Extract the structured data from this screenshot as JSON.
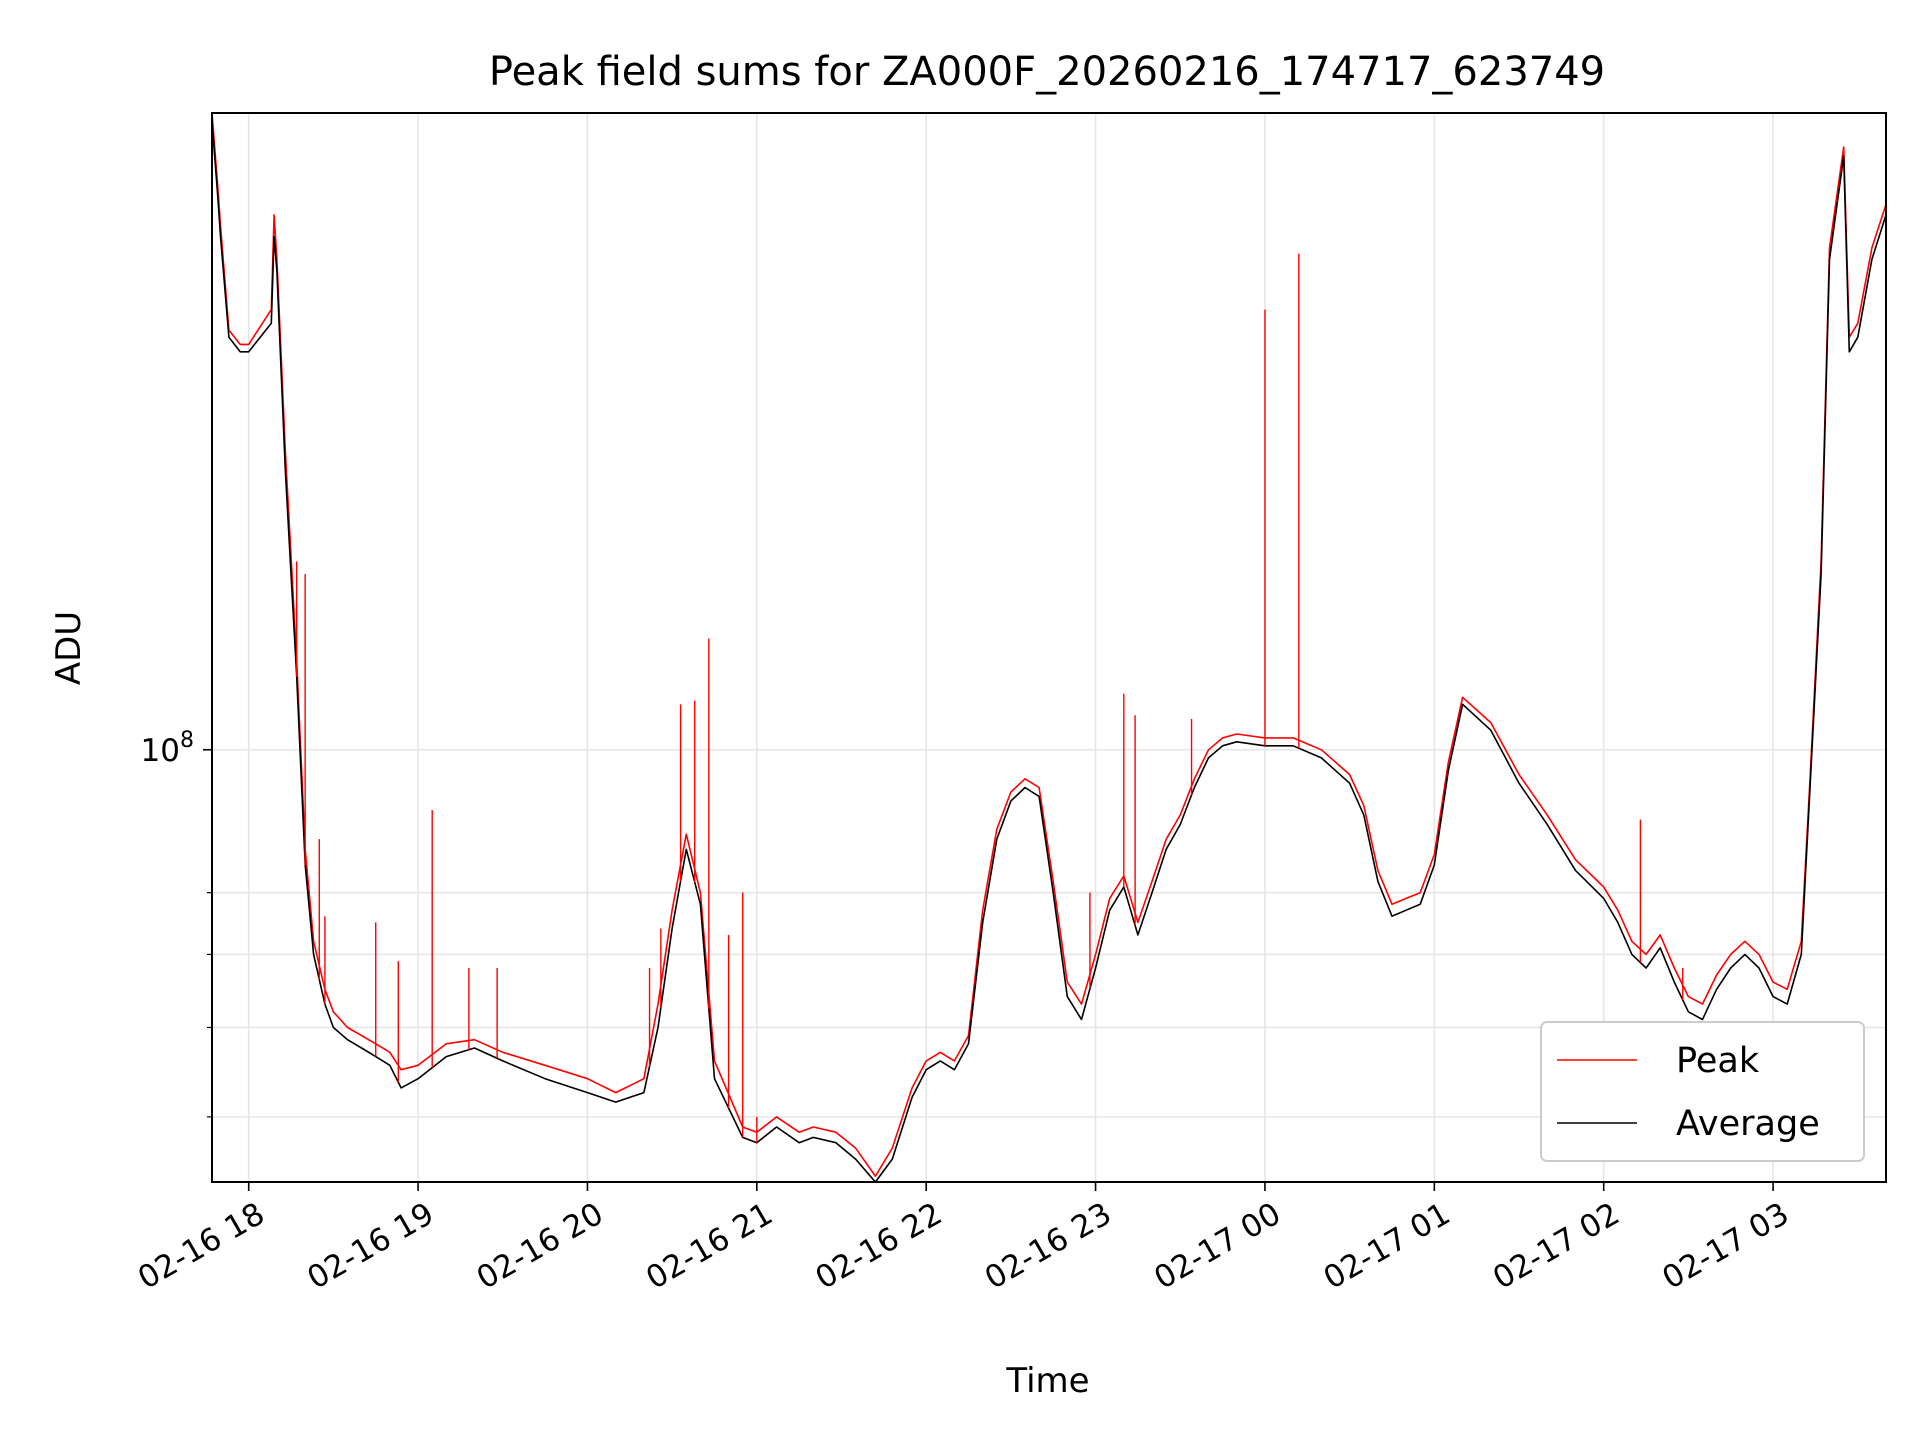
{
  "chart_data": {
    "type": "line",
    "title": "Peak field sums for ZA000F_20260216_174717_623749",
    "xlabel": "Time",
    "ylabel": "ADU",
    "yscale": "log",
    "ylim": [
      34000000,
      490000000
    ],
    "xlim": [
      "2026-02-16 17:47",
      "2026-02-17 03:40"
    ],
    "grid": true,
    "legend_position": "lower-right",
    "x_ticks": [
      "02-16 18",
      "02-16 19",
      "02-16 20",
      "02-16 21",
      "02-16 22",
      "02-16 23",
      "02-17 00",
      "02-17 01",
      "02-17 02",
      "02-17 03"
    ],
    "x_tick_times": [
      "2026-02-16 18:00",
      "2026-02-16 19:00",
      "2026-02-16 20:00",
      "2026-02-16 21:00",
      "2026-02-16 22:00",
      "2026-02-16 23:00",
      "2026-02-17 00:00",
      "2026-02-17 01:00",
      "2026-02-17 02:00",
      "2026-02-17 03:00"
    ],
    "y_major_ticks": [
      {
        "value": 100000000,
        "base": "10",
        "exp": "8"
      }
    ],
    "y_minor_ticks": [
      40000000,
      50000000,
      60000000,
      70000000
    ],
    "series": [
      {
        "name": "Average",
        "color": "#000000",
        "x": [
          "2026-02-16 17:47",
          "2026-02-16 17:49",
          "2026-02-16 17:50",
          "2026-02-16 17:53",
          "2026-02-16 17:57",
          "2026-02-16 18:00",
          "2026-02-16 18:08",
          "2026-02-16 18:09",
          "2026-02-16 18:10",
          "2026-02-16 18:13",
          "2026-02-16 18:17",
          "2026-02-16 18:20",
          "2026-02-16 18:23",
          "2026-02-16 18:27",
          "2026-02-16 18:30",
          "2026-02-16 18:35",
          "2026-02-16 18:40",
          "2026-02-16 18:45",
          "2026-02-16 18:50",
          "2026-02-16 18:54",
          "2026-02-16 19:00",
          "2026-02-16 19:10",
          "2026-02-16 19:20",
          "2026-02-16 19:30",
          "2026-02-16 19:45",
          "2026-02-16 20:00",
          "2026-02-16 20:10",
          "2026-02-16 20:20",
          "2026-02-16 20:25",
          "2026-02-16 20:30",
          "2026-02-16 20:35",
          "2026-02-16 20:40",
          "2026-02-16 20:45",
          "2026-02-16 20:55",
          "2026-02-16 21:00",
          "2026-02-16 21:07",
          "2026-02-16 21:15",
          "2026-02-16 21:20",
          "2026-02-16 21:28",
          "2026-02-16 21:35",
          "2026-02-16 21:42",
          "2026-02-16 21:48",
          "2026-02-16 21:55",
          "2026-02-16 22:00",
          "2026-02-16 22:05",
          "2026-02-16 22:10",
          "2026-02-16 22:15",
          "2026-02-16 22:20",
          "2026-02-16 22:25",
          "2026-02-16 22:30",
          "2026-02-16 22:35",
          "2026-02-16 22:40",
          "2026-02-16 22:45",
          "2026-02-16 22:50",
          "2026-02-16 22:55",
          "2026-02-16 23:00",
          "2026-02-16 23:05",
          "2026-02-16 23:10",
          "2026-02-16 23:15",
          "2026-02-16 23:20",
          "2026-02-16 23:25",
          "2026-02-16 23:30",
          "2026-02-16 23:35",
          "2026-02-16 23:40",
          "2026-02-16 23:45",
          "2026-02-16 23:50",
          "2026-02-17 00:00",
          "2026-02-17 00:10",
          "2026-02-17 00:20",
          "2026-02-17 00:30",
          "2026-02-17 00:35",
          "2026-02-17 00:40",
          "2026-02-17 00:45",
          "2026-02-17 00:50",
          "2026-02-17 00:55",
          "2026-02-17 01:00",
          "2026-02-17 01:05",
          "2026-02-17 01:10",
          "2026-02-17 01:20",
          "2026-02-17 01:30",
          "2026-02-17 01:40",
          "2026-02-17 01:50",
          "2026-02-17 02:00",
          "2026-02-17 02:05",
          "2026-02-17 02:10",
          "2026-02-17 02:15",
          "2026-02-17 02:20",
          "2026-02-17 02:25",
          "2026-02-17 02:30",
          "2026-02-17 02:35",
          "2026-02-17 02:40",
          "2026-02-17 02:45",
          "2026-02-17 02:50",
          "2026-02-17 02:55",
          "2026-02-17 03:00",
          "2026-02-17 03:05",
          "2026-02-17 03:10",
          "2026-02-17 03:13",
          "2026-02-17 03:17",
          "2026-02-17 03:20",
          "2026-02-17 03:25",
          "2026-02-17 03:27",
          "2026-02-17 03:30",
          "2026-02-17 03:35",
          "2026-02-17 03:40"
        ],
        "values": [
          480000000,
          400000000,
          360000000,
          280000000,
          270000000,
          270000000,
          290000000,
          360000000,
          330000000,
          200000000,
          120000000,
          75000000,
          60000000,
          53000000,
          50000000,
          48500000,
          47500000,
          46500000,
          45500000,
          43000000,
          44000000,
          46500000,
          47500000,
          46000000,
          44000000,
          42500000,
          41500000,
          42500000,
          50000000,
          64000000,
          78000000,
          68000000,
          44000000,
          38000000,
          37500000,
          39000000,
          37500000,
          38000000,
          37500000,
          36000000,
          34000000,
          36000000,
          42000000,
          45000000,
          46000000,
          45000000,
          48000000,
          65000000,
          80000000,
          88000000,
          91000000,
          89000000,
          70000000,
          54000000,
          51000000,
          58000000,
          67000000,
          71000000,
          63000000,
          70000000,
          78000000,
          83000000,
          91000000,
          98000000,
          101000000,
          102000000,
          101000000,
          101000000,
          98000000,
          92000000,
          85000000,
          72000000,
          66000000,
          67000000,
          68000000,
          75000000,
          95000000,
          112000000,
          105000000,
          92000000,
          83000000,
          74000000,
          69000000,
          65000000,
          60000000,
          58000000,
          61000000,
          56000000,
          52000000,
          51000000,
          55000000,
          58000000,
          60000000,
          58000000,
          54000000,
          53000000,
          60000000,
          90000000,
          155000000,
          340000000,
          440000000,
          270000000,
          280000000,
          340000000,
          380000000
        ]
      },
      {
        "name": "Peak",
        "color": "#ff0000",
        "x": [
          "2026-02-16 17:47",
          "2026-02-16 17:49",
          "2026-02-16 17:50",
          "2026-02-16 17:53",
          "2026-02-16 17:57",
          "2026-02-16 18:00",
          "2026-02-16 18:08",
          "2026-02-16 18:09",
          "2026-02-16 18:10",
          "2026-02-16 18:13",
          "2026-02-16 18:17",
          "2026-02-16 18:20",
          "2026-02-16 18:23",
          "2026-02-16 18:27",
          "2026-02-16 18:30",
          "2026-02-16 18:35",
          "2026-02-16 18:40",
          "2026-02-16 18:45",
          "2026-02-16 18:50",
          "2026-02-16 18:54",
          "2026-02-16 19:00",
          "2026-02-16 19:10",
          "2026-02-16 19:20",
          "2026-02-16 19:30",
          "2026-02-16 19:45",
          "2026-02-16 20:00",
          "2026-02-16 20:10",
          "2026-02-16 20:20",
          "2026-02-16 20:25",
          "2026-02-16 20:30",
          "2026-02-16 20:35",
          "2026-02-16 20:40",
          "2026-02-16 20:45",
          "2026-02-16 20:55",
          "2026-02-16 21:00",
          "2026-02-16 21:07",
          "2026-02-16 21:15",
          "2026-02-16 21:20",
          "2026-02-16 21:28",
          "2026-02-16 21:35",
          "2026-02-16 21:42",
          "2026-02-16 21:48",
          "2026-02-16 21:55",
          "2026-02-16 22:00",
          "2026-02-16 22:05",
          "2026-02-16 22:10",
          "2026-02-16 22:15",
          "2026-02-16 22:20",
          "2026-02-16 22:25",
          "2026-02-16 22:30",
          "2026-02-16 22:35",
          "2026-02-16 22:40",
          "2026-02-16 22:45",
          "2026-02-16 22:50",
          "2026-02-16 22:55",
          "2026-02-16 23:00",
          "2026-02-16 23:05",
          "2026-02-16 23:10",
          "2026-02-16 23:15",
          "2026-02-16 23:20",
          "2026-02-16 23:25",
          "2026-02-16 23:30",
          "2026-02-16 23:35",
          "2026-02-16 23:40",
          "2026-02-16 23:45",
          "2026-02-16 23:50",
          "2026-02-17 00:00",
          "2026-02-17 00:10",
          "2026-02-17 00:20",
          "2026-02-17 00:30",
          "2026-02-17 00:35",
          "2026-02-17 00:40",
          "2026-02-17 00:45",
          "2026-02-17 00:50",
          "2026-02-17 00:55",
          "2026-02-17 01:00",
          "2026-02-17 01:05",
          "2026-02-17 01:10",
          "2026-02-17 01:20",
          "2026-02-17 01:30",
          "2026-02-17 01:40",
          "2026-02-17 01:50",
          "2026-02-17 02:00",
          "2026-02-17 02:05",
          "2026-02-17 02:10",
          "2026-02-17 02:15",
          "2026-02-17 02:20",
          "2026-02-17 02:25",
          "2026-02-17 02:30",
          "2026-02-17 02:35",
          "2026-02-17 02:40",
          "2026-02-17 02:45",
          "2026-02-17 02:50",
          "2026-02-17 02:55",
          "2026-02-17 03:00",
          "2026-02-17 03:05",
          "2026-02-17 03:10",
          "2026-02-17 03:13",
          "2026-02-17 03:17",
          "2026-02-17 03:20",
          "2026-02-17 03:25",
          "2026-02-17 03:27",
          "2026-02-17 03:30",
          "2026-02-17 03:35",
          "2026-02-17 03:40"
        ],
        "values": [
          490000000,
          410000000,
          370000000,
          285000000,
          275000000,
          275000000,
          300000000,
          380000000,
          340000000,
          210000000,
          125000000,
          78000000,
          62000000,
          55000000,
          52000000,
          50000000,
          49000000,
          48000000,
          47000000,
          45000000,
          45500000,
          48000000,
          48500000,
          47000000,
          45500000,
          44000000,
          42500000,
          44000000,
          53000000,
          67000000,
          81000000,
          70000000,
          46000000,
          39000000,
          38500000,
          40000000,
          38500000,
          39000000,
          38500000,
          37000000,
          34500000,
          37000000,
          43000000,
          46000000,
          47000000,
          46000000,
          49000000,
          67000000,
          82000000,
          90000000,
          93000000,
          91000000,
          72000000,
          56000000,
          53000000,
          60000000,
          69000000,
          73000000,
          65000000,
          72000000,
          80000000,
          85000000,
          93000000,
          100000000,
          103000000,
          104000000,
          103000000,
          103000000,
          100000000,
          94000000,
          87000000,
          74000000,
          68000000,
          69000000,
          70000000,
          77000000,
          97000000,
          114000000,
          107000000,
          94000000,
          85000000,
          76000000,
          71000000,
          67000000,
          62000000,
          60000000,
          63000000,
          58000000,
          54000000,
          53000000,
          57000000,
          60000000,
          62000000,
          60000000,
          56000000,
          55000000,
          62000000,
          92000000,
          160000000,
          350000000,
          450000000,
          280000000,
          290000000,
          350000000,
          390000000
        ]
      }
    ],
    "peak_spikes": [
      {
        "x": "2026-02-16 18:17",
        "value": 160000000
      },
      {
        "x": "2026-02-16 18:20",
        "value": 155000000
      },
      {
        "x": "2026-02-16 18:25",
        "value": 80000000
      },
      {
        "x": "2026-02-16 18:27",
        "value": 66000000
      },
      {
        "x": "2026-02-16 18:45",
        "value": 65000000
      },
      {
        "x": "2026-02-16 18:53",
        "value": 59000000
      },
      {
        "x": "2026-02-16 19:05",
        "value": 86000000
      },
      {
        "x": "2026-02-16 19:18",
        "value": 58000000
      },
      {
        "x": "2026-02-16 19:28",
        "value": 58000000
      },
      {
        "x": "2026-02-16 20:22",
        "value": 58000000
      },
      {
        "x": "2026-02-16 20:26",
        "value": 64000000
      },
      {
        "x": "2026-02-16 20:33",
        "value": 112000000
      },
      {
        "x": "2026-02-16 20:38",
        "value": 113000000
      },
      {
        "x": "2026-02-16 20:43",
        "value": 132000000
      },
      {
        "x": "2026-02-16 20:50",
        "value": 63000000
      },
      {
        "x": "2026-02-16 20:55",
        "value": 70000000
      },
      {
        "x": "2026-02-16 21:00",
        "value": 40000000
      },
      {
        "x": "2026-02-16 22:58",
        "value": 70000000
      },
      {
        "x": "2026-02-16 23:10",
        "value": 115000000
      },
      {
        "x": "2026-02-16 23:14",
        "value": 109000000
      },
      {
        "x": "2026-02-16 23:34",
        "value": 108000000
      },
      {
        "x": "2026-02-17 00:00",
        "value": 300000000
      },
      {
        "x": "2026-02-17 00:12",
        "value": 345000000
      },
      {
        "x": "2026-02-17 02:13",
        "value": 84000000
      },
      {
        "x": "2026-02-17 02:28",
        "value": 58000000
      }
    ]
  }
}
